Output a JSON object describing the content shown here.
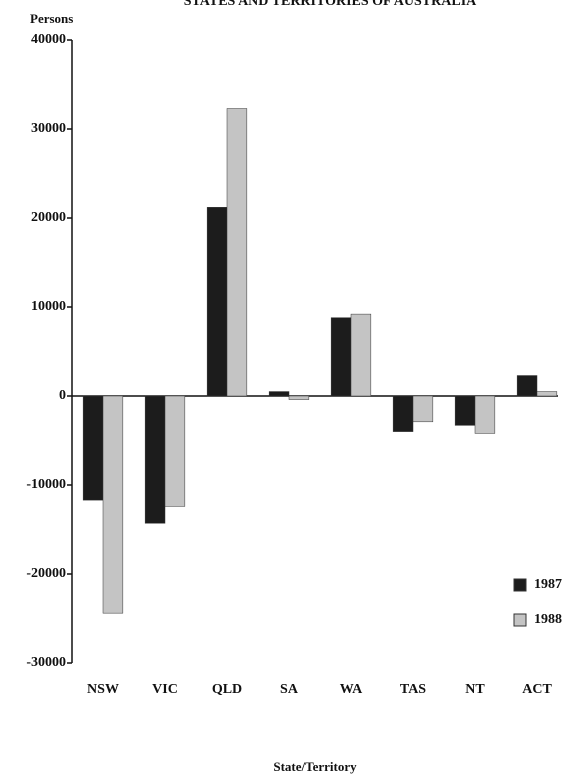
{
  "chart_data": {
    "type": "bar",
    "title": "STATES AND TERRITORIES OF AUSTRALIA",
    "y_label": "Persons",
    "x_label": "State/Territory",
    "categories": [
      "NSW",
      "VIC",
      "QLD",
      "SA",
      "WA",
      "TAS",
      "NT",
      "ACT"
    ],
    "series": [
      {
        "name": "1987",
        "color": "#1c1c1c",
        "values": [
          -11700,
          -14300,
          21200,
          500,
          8800,
          -4000,
          -3300,
          2300
        ]
      },
      {
        "name": "1988",
        "color": "#c4c4c4",
        "values": [
          -24400,
          -12400,
          32300,
          -400,
          9200,
          -2900,
          -4200,
          500
        ]
      }
    ],
    "ylim": [
      -30000,
      40000
    ],
    "yticks": [
      -30000,
      -20000,
      -10000,
      0,
      10000,
      20000,
      30000,
      40000
    ]
  }
}
